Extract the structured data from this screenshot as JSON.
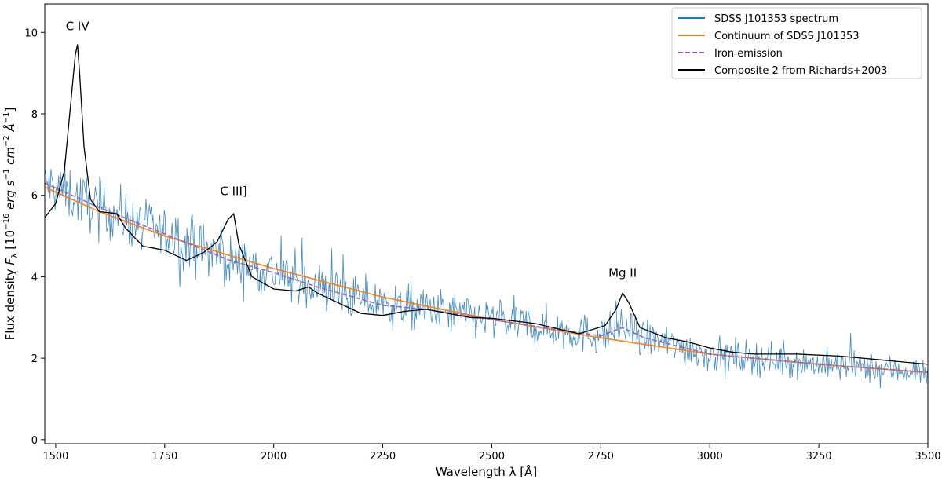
{
  "chart_data": {
    "type": "line",
    "title": "",
    "xlabel": "Wavelength λ [Å]",
    "ylabel": {
      "prefix": "Flux density ",
      "symbol": "F",
      "subscript": "λ",
      "bracket_open": " [10",
      "exp1": "−16",
      "unit_erg": " erg s",
      "exp2": "−1",
      "unit_cm": " cm",
      "exp3": "−2",
      "unit_a": " Å",
      "exp4": "−1",
      "bracket_close": "]"
    },
    "xlim": [
      1475,
      3500
    ],
    "ylim": [
      -0.1,
      10.7
    ],
    "xticks": [
      1500,
      1750,
      2000,
      2250,
      2500,
      2750,
      3000,
      3250,
      3500
    ],
    "yticks": [
      0,
      2,
      4,
      6,
      8,
      10
    ],
    "legend_position": "top-right",
    "colors": {
      "spectrum": "#1f77b4",
      "continuum": "#ff7f0e",
      "iron": "#9467bd",
      "composite": "#000000"
    },
    "series": [
      {
        "name": "SDSS J101353 spectrum",
        "style": "noisy-line",
        "x_start": 1475,
        "x_end": 3500,
        "x_step": 2,
        "noise_amplitude_low_lambda": 0.9,
        "noise_amplitude_high_lambda": 0.45,
        "note": "noisy observed spectrum following the continuum plus iron emission"
      },
      {
        "name": "Continuum of SDSS J101353",
        "style": "solid",
        "x": [
          1475,
          1600,
          1750,
          2000,
          2250,
          2500,
          2750,
          3000,
          3250,
          3500
        ],
        "y": [
          6.2,
          5.6,
          5.0,
          4.2,
          3.5,
          2.95,
          2.5,
          2.1,
          1.85,
          1.65
        ]
      },
      {
        "name": "Iron emission",
        "style": "dashed",
        "x": [
          1475,
          1600,
          1750,
          1900,
          2000,
          2100,
          2250,
          2350,
          2500,
          2650,
          2750,
          2800,
          2850,
          3000,
          3250,
          3500
        ],
        "y": [
          6.3,
          5.7,
          5.05,
          4.4,
          4.1,
          3.75,
          3.3,
          3.2,
          2.95,
          2.7,
          2.55,
          2.75,
          2.5,
          2.1,
          1.85,
          1.65
        ]
      },
      {
        "name": "Composite 2 from Richards+2003",
        "style": "solid",
        "x": [
          1475,
          1500,
          1520,
          1535,
          1545,
          1550,
          1555,
          1565,
          1580,
          1600,
          1640,
          1660,
          1700,
          1750,
          1800,
          1840,
          1870,
          1895,
          1908,
          1920,
          1950,
          2000,
          2050,
          2080,
          2100,
          2150,
          2200,
          2250,
          2300,
          2350,
          2400,
          2450,
          2500,
          2600,
          2700,
          2760,
          2785,
          2800,
          2815,
          2840,
          2900,
          2950,
          3000,
          3050,
          3100,
          3200,
          3300,
          3400,
          3500
        ],
        "y": [
          5.45,
          5.8,
          6.6,
          8.3,
          9.45,
          9.7,
          9.0,
          7.2,
          5.9,
          5.6,
          5.55,
          5.2,
          4.75,
          4.65,
          4.4,
          4.6,
          4.85,
          5.4,
          5.55,
          4.8,
          4.0,
          3.7,
          3.65,
          3.75,
          3.6,
          3.35,
          3.1,
          3.05,
          3.15,
          3.2,
          3.1,
          3.0,
          2.98,
          2.85,
          2.6,
          2.8,
          3.2,
          3.6,
          3.35,
          2.75,
          2.5,
          2.4,
          2.25,
          2.15,
          2.1,
          2.1,
          2.05,
          1.95,
          1.85
        ]
      }
    ],
    "annotations": [
      {
        "text": "C IV",
        "x": 1550,
        "y": 10.05
      },
      {
        "text": "C III]",
        "x": 1908,
        "y": 6.0
      },
      {
        "text": "Mg II",
        "x": 2800,
        "y": 4.0
      }
    ]
  }
}
